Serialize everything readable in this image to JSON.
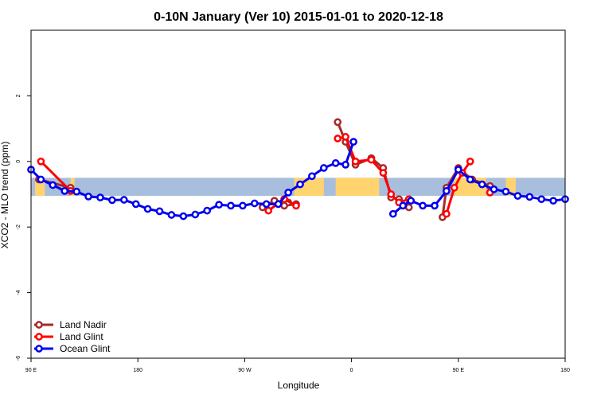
{
  "chart_data": {
    "type": "line",
    "title": "0-10N January (Ver 10)   2015-01-01 to 2020-12-18",
    "xlabel": "Longitude",
    "ylabel": "XCO2 - MLO trend (ppm)",
    "xlim": [
      -90,
      180
    ],
    "ylim": [
      -6,
      4
    ],
    "x_ticks": [
      {
        "value": -90,
        "label": "90 E"
      },
      {
        "value": -36,
        "label": "180"
      },
      {
        "value": 18,
        "label": "90 W"
      },
      {
        "value": 72,
        "label": "0"
      },
      {
        "value": 126,
        "label": "90 E"
      },
      {
        "value": 180,
        "label": "180"
      }
    ],
    "y_ticks": [
      {
        "value": -6,
        "label": "-6"
      },
      {
        "value": -4,
        "label": "-4"
      },
      {
        "value": -2,
        "label": "-2"
      },
      {
        "value": 0,
        "label": "0"
      },
      {
        "value": 2,
        "label": "2"
      }
    ],
    "grid": false,
    "legend_position": "bottom-left",
    "band": {
      "y_from": -1.05,
      "y_to": -0.5,
      "color": "#a8bedd",
      "land_color": "#ffd36e"
    },
    "land_spans": [
      [
        -88,
        -83
      ],
      [
        -70,
        -68
      ],
      [
        43,
        58
      ],
      [
        64,
        86
      ],
      [
        124,
        140
      ],
      [
        150,
        155
      ]
    ],
    "series": [
      {
        "name": "Land Nadir",
        "color": "#a52a2a",
        "segments": [
          [
            [
              -86,
              -0.55
            ],
            [
              -70,
              -0.8
            ]
          ],
          [
            [
              27,
              -1.4
            ],
            [
              33,
              -1.2
            ],
            [
              40,
              -1.25
            ],
            [
              44,
              -1.3
            ],
            [
              38,
              -1.35
            ]
          ],
          [
            [
              65,
              1.2
            ],
            [
              69,
              0.6
            ],
            [
              74,
              -0.1
            ],
            [
              82,
              0.1
            ],
            [
              88,
              -0.2
            ],
            [
              92,
              -1.1
            ],
            [
              96,
              -1.15
            ],
            [
              101,
              -1.4
            ]
          ],
          [
            [
              118,
              -1.7
            ],
            [
              120,
              -0.8
            ],
            [
              126,
              -0.2
            ],
            [
              133,
              -0.55
            ],
            [
              142,
              -0.75
            ]
          ]
        ]
      },
      {
        "name": "Land Glint",
        "color": "#ff0000",
        "segments": [
          [
            [
              -85,
              0.0
            ],
            [
              -70,
              -0.9
            ]
          ],
          [
            [
              30,
              -1.5
            ],
            [
              38,
              -1.15
            ],
            [
              44,
              -1.35
            ]
          ],
          [
            [
              65,
              0.7
            ],
            [
              69,
              0.75
            ],
            [
              74,
              0.0
            ],
            [
              82,
              0.05
            ],
            [
              88,
              -0.35
            ],
            [
              92,
              -1.0
            ],
            [
              96,
              -1.25
            ],
            [
              101,
              -1.15
            ]
          ],
          [
            [
              120,
              -1.6
            ],
            [
              124,
              -0.8
            ],
            [
              128,
              -0.35
            ],
            [
              132,
              0.0
            ]
          ],
          [
            [
              142,
              -0.95
            ]
          ]
        ]
      },
      {
        "name": "Ocean Glint",
        "color": "#0000ee",
        "segments": [
          [
            [
              -90,
              -0.25
            ],
            [
              -85,
              -0.55
            ],
            [
              -79,
              -0.72
            ],
            [
              -73,
              -0.9
            ],
            [
              -67,
              -0.92
            ],
            [
              -61,
              -1.07
            ],
            [
              -55,
              -1.1
            ],
            [
              -49,
              -1.18
            ],
            [
              -43,
              -1.17
            ],
            [
              -37,
              -1.3
            ],
            [
              -31,
              -1.45
            ],
            [
              -25,
              -1.52
            ],
            [
              -19,
              -1.63
            ],
            [
              -13,
              -1.67
            ],
            [
              -7,
              -1.62
            ],
            [
              -1,
              -1.5
            ],
            [
              5,
              -1.32
            ],
            [
              11,
              -1.35
            ],
            [
              17,
              -1.35
            ],
            [
              23,
              -1.28
            ],
            [
              29,
              -1.3
            ],
            [
              35,
              -1.3
            ],
            [
              40,
              -0.95
            ],
            [
              46,
              -0.7
            ],
            [
              52,
              -0.45
            ],
            [
              58,
              -0.2
            ],
            [
              64,
              -0.05
            ],
            [
              69,
              -0.1
            ],
            [
              73,
              0.6
            ]
          ],
          [
            [
              93,
              -1.6
            ],
            [
              98,
              -1.35
            ],
            [
              102,
              -1.2
            ],
            [
              108,
              -1.35
            ],
            [
              114,
              -1.35
            ],
            [
              120,
              -0.9
            ],
            [
              126,
              -0.25
            ],
            [
              132,
              -0.55
            ],
            [
              138,
              -0.7
            ],
            [
              144,
              -0.85
            ],
            [
              150,
              -0.92
            ],
            [
              156,
              -1.05
            ],
            [
              162,
              -1.08
            ],
            [
              168,
              -1.15
            ],
            [
              174,
              -1.2
            ],
            [
              180,
              -1.15
            ]
          ]
        ]
      }
    ]
  }
}
